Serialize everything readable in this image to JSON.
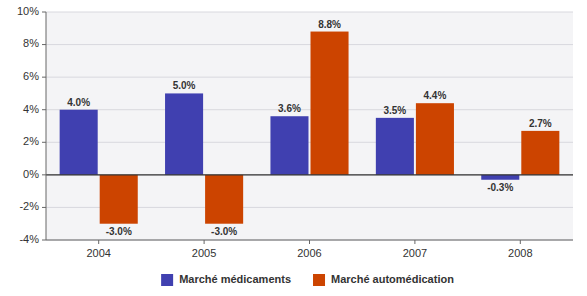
{
  "chart_data": {
    "type": "bar",
    "categories": [
      "2004",
      "2005",
      "2006",
      "2007",
      "2008"
    ],
    "series": [
      {
        "name": "Marché médicaments",
        "color": "#4040B0",
        "values": [
          4.0,
          5.0,
          3.6,
          3.5,
          -0.3
        ],
        "value_labels": [
          "4.0%",
          "5.0%",
          "3.6%",
          "3.5%",
          "-0.3%"
        ]
      },
      {
        "name": "Marché automédication",
        "color": "#CC4400",
        "values": [
          -3.0,
          -3.0,
          8.8,
          4.4,
          2.7
        ],
        "value_labels": [
          "-3.0%",
          "-3.0%",
          "8.8%",
          "4.4%",
          "2.7%"
        ]
      }
    ],
    "ylim": [
      -4,
      10
    ],
    "yticks": [
      {
        "value": -4,
        "label": "-4%"
      },
      {
        "value": -2,
        "label": "-2%"
      },
      {
        "value": 0,
        "label": "0%"
      },
      {
        "value": 2,
        "label": "2%"
      },
      {
        "value": 4,
        "label": "4%"
      },
      {
        "value": 6,
        "label": "6%"
      },
      {
        "value": 8,
        "label": "8%"
      },
      {
        "value": 10,
        "label": "10%"
      }
    ],
    "grid": true,
    "data_labels": true,
    "legend": "bottom"
  }
}
